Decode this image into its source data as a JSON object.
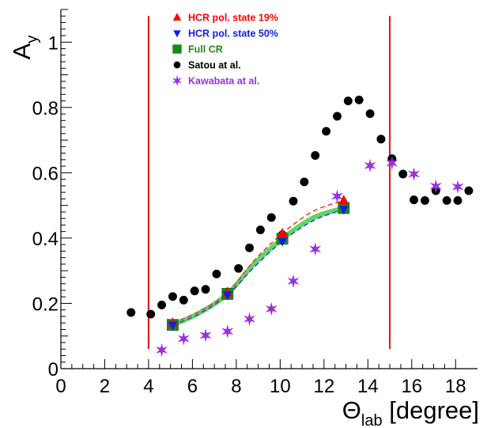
{
  "chart_data": {
    "type": "scatter",
    "xlabel": "Θlab [degree]",
    "xlabel_main": "Θ",
    "xlabel_sub": "lab",
    "xlabel_unit": " [degree]",
    "ylabel": "Ay",
    "ylabel_main": "A",
    "ylabel_sub": "y",
    "xlim": [
      0,
      19
    ],
    "ylim": [
      0,
      1.1
    ],
    "x_ticks": [
      0,
      2,
      4,
      6,
      8,
      10,
      12,
      14,
      16,
      18
    ],
    "y_ticks": [
      0,
      0.2,
      0.4,
      0.6,
      0.8,
      1
    ],
    "y_tick_labels": [
      "0",
      "0.2",
      "0.4",
      "0.6",
      "0.8",
      "1"
    ],
    "grid": false,
    "legend_position": "top-left",
    "vertical_lines": [
      {
        "x": 4,
        "y_range": [
          0.06,
          1.08
        ],
        "color": "#e02020"
      },
      {
        "x": 15,
        "y_range": [
          0.06,
          1.08
        ],
        "color": "#e02020"
      }
    ],
    "series": [
      {
        "name": "HCR pol. state 19%",
        "marker": "triangle-up",
        "color": "#ff0000",
        "x": [
          5.1,
          7.6,
          10.1,
          12.9
        ],
        "y": [
          0.14,
          0.232,
          0.414,
          0.515
        ]
      },
      {
        "name": "HCR pol. state 50%",
        "marker": "triangle-down",
        "color": "#1020e0",
        "x": [
          5.1,
          7.6,
          10.1,
          12.9
        ],
        "y": [
          0.133,
          0.226,
          0.39,
          0.488
        ]
      },
      {
        "name": "Full CR",
        "marker": "square",
        "color": "#1a8a1a",
        "x": [
          5.1,
          7.6,
          10.1,
          12.9
        ],
        "y": [
          0.134,
          0.229,
          0.398,
          0.492
        ]
      },
      {
        "name": "Satou at al.",
        "marker": "circle",
        "color": "#000000",
        "x": [
          3.2,
          4.1,
          4.6,
          5.1,
          5.6,
          6.1,
          6.6,
          7.1,
          7.6,
          8.1,
          8.6,
          9.1,
          9.6,
          10.1,
          10.6,
          11.1,
          11.6,
          12.1,
          12.6,
          13.1,
          13.6,
          14.1,
          14.6,
          15.1,
          15.6,
          16.1,
          16.6,
          17.1,
          17.6,
          18.1,
          18.6
        ],
        "y": [
          0.172,
          0.167,
          0.195,
          0.221,
          0.21,
          0.238,
          0.243,
          0.29,
          0.235,
          0.307,
          0.37,
          0.425,
          0.463,
          0.41,
          0.513,
          0.572,
          0.653,
          0.727,
          0.773,
          0.82,
          0.823,
          0.781,
          0.703,
          0.643,
          0.596,
          0.517,
          0.515,
          0.545,
          0.515,
          0.515,
          0.545
        ]
      },
      {
        "name": "Kawabata at al.",
        "marker": "star",
        "color": "#9a30e0",
        "x": [
          4.6,
          5.6,
          6.6,
          7.6,
          8.6,
          9.6,
          10.6,
          11.6,
          12.6,
          14.1,
          15.1,
          16.1,
          17.1,
          18.1
        ],
        "y": [
          0.057,
          0.092,
          0.102,
          0.114,
          0.152,
          0.183,
          0.268,
          0.366,
          0.528,
          0.622,
          0.63,
          0.596,
          0.559,
          0.557
        ]
      }
    ],
    "curves": [
      {
        "of": "HCR pol. state 19%",
        "style": "dashed",
        "color": "#ff3030",
        "x": [
          5.1,
          6.3,
          7.6,
          8.8,
          10.1,
          11.5,
          12.9
        ],
        "y": [
          0.14,
          0.175,
          0.232,
          0.33,
          0.414,
          0.482,
          0.515
        ]
      },
      {
        "of": "HCR pol. state 50%",
        "style": "dashed",
        "color": "#2040ff",
        "x": [
          5.1,
          6.3,
          7.6,
          8.8,
          10.1,
          11.5,
          12.9
        ],
        "y": [
          0.133,
          0.168,
          0.226,
          0.31,
          0.39,
          0.453,
          0.488
        ]
      },
      {
        "of": "Full CR",
        "style": "band",
        "color": "#44d044",
        "x": [
          5.1,
          6.3,
          7.6,
          8.8,
          10.1,
          11.5,
          12.9
        ],
        "y": [
          0.134,
          0.17,
          0.229,
          0.32,
          0.398,
          0.462,
          0.492
        ]
      }
    ]
  }
}
